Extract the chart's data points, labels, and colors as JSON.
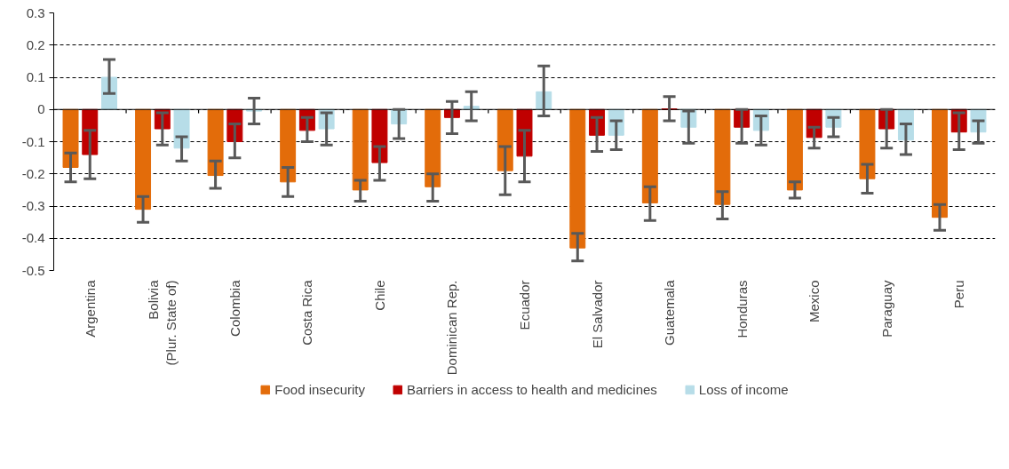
{
  "chart_data": {
    "type": "bar",
    "categories": [
      "Argentina",
      "Bolivia (Plur. State of)",
      "Colombia",
      "Costa Rica",
      "Chile",
      "Dominican Rep.",
      "Ecuador",
      "El Salvador",
      "Guatemala",
      "Honduras",
      "Mexico",
      "Paraguay",
      "Peru"
    ],
    "series": [
      {
        "name": "Food insecurity",
        "color": "#e36c0a",
        "values": [
          -0.18,
          -0.31,
          -0.205,
          -0.225,
          -0.25,
          -0.24,
          -0.19,
          -0.43,
          -0.29,
          -0.295,
          -0.25,
          -0.215,
          -0.335
        ],
        "errors": [
          [
            -0.225,
            -0.135
          ],
          [
            -0.35,
            -0.27
          ],
          [
            -0.245,
            -0.16
          ],
          [
            -0.27,
            -0.18
          ],
          [
            -0.285,
            -0.22
          ],
          [
            -0.285,
            -0.2
          ],
          [
            -0.265,
            -0.115
          ],
          [
            -0.47,
            -0.385
          ],
          [
            -0.345,
            -0.24
          ],
          [
            -0.34,
            -0.255
          ],
          [
            -0.275,
            -0.225
          ],
          [
            -0.26,
            -0.17
          ],
          [
            -0.375,
            -0.295
          ]
        ]
      },
      {
        "name": "Barriers in access to health and medicines",
        "color": "#c00000",
        "values": [
          -0.14,
          -0.06,
          -0.1,
          -0.065,
          -0.165,
          -0.025,
          -0.145,
          -0.08,
          0.002,
          -0.055,
          -0.087,
          -0.06,
          -0.07
        ],
        "errors": [
          [
            -0.215,
            -0.065
          ],
          [
            -0.11,
            -0.01
          ],
          [
            -0.15,
            -0.045
          ],
          [
            -0.1,
            -0.025
          ],
          [
            -0.22,
            -0.115
          ],
          [
            -0.075,
            0.025
          ],
          [
            -0.225,
            -0.065
          ],
          [
            -0.13,
            -0.025
          ],
          [
            -0.035,
            0.04
          ],
          [
            -0.105,
            0.0
          ],
          [
            -0.12,
            -0.055
          ],
          [
            -0.12,
            0.0
          ],
          [
            -0.125,
            -0.01
          ]
        ]
      },
      {
        "name": "Loss of income",
        "color": "#b7dde8",
        "values": [
          0.1,
          -0.12,
          -0.005,
          -0.06,
          -0.045,
          0.01,
          0.055,
          -0.08,
          -0.055,
          -0.065,
          -0.055,
          -0.095,
          -0.07
        ],
        "errors": [
          [
            0.05,
            0.155
          ],
          [
            -0.16,
            -0.085
          ],
          [
            -0.045,
            0.035
          ],
          [
            -0.11,
            -0.01
          ],
          [
            -0.09,
            0.0
          ],
          [
            -0.035,
            0.055
          ],
          [
            -0.02,
            0.135
          ],
          [
            -0.125,
            -0.035
          ],
          [
            -0.105,
            -0.005
          ],
          [
            -0.11,
            -0.02
          ],
          [
            -0.085,
            -0.025
          ],
          [
            -0.14,
            -0.045
          ],
          [
            -0.105,
            -0.035
          ]
        ]
      }
    ],
    "ylim": [
      -0.5,
      0.3
    ],
    "yticks": [
      -0.5,
      -0.4,
      -0.3,
      -0.2,
      -0.1,
      0,
      0.1,
      0.2,
      0.3
    ],
    "grid": "y",
    "legend": "bottom"
  }
}
